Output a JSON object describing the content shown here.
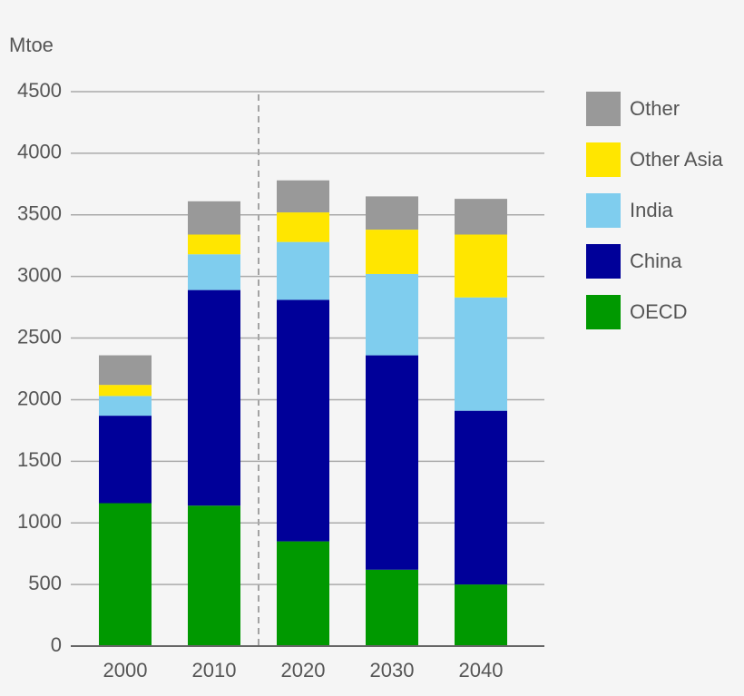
{
  "chart_data": {
    "type": "stacked-bar",
    "y_label": "Mtoe",
    "categories": [
      "2000",
      "2010",
      "2020",
      "2030",
      "2040"
    ],
    "series": [
      {
        "name": "OECD",
        "color": "#009900",
        "values": [
          1160,
          1140,
          850,
          620,
          500
        ]
      },
      {
        "name": "China",
        "color": "#000099",
        "values": [
          710,
          1750,
          1960,
          1740,
          1410
        ]
      },
      {
        "name": "India",
        "color": "#7fcdee",
        "values": [
          160,
          290,
          470,
          660,
          920
        ]
      },
      {
        "name": "Other Asia",
        "color": "#ffe600",
        "values": [
          90,
          160,
          240,
          360,
          510
        ]
      },
      {
        "name": "Other",
        "color": "#999999",
        "values": [
          240,
          270,
          260,
          270,
          290
        ]
      }
    ],
    "ylim": [
      0,
      4500
    ],
    "yticks": [
      0,
      500,
      1000,
      1500,
      2000,
      2500,
      3000,
      3500,
      4000,
      4500
    ],
    "grid": true,
    "legend": "right"
  }
}
